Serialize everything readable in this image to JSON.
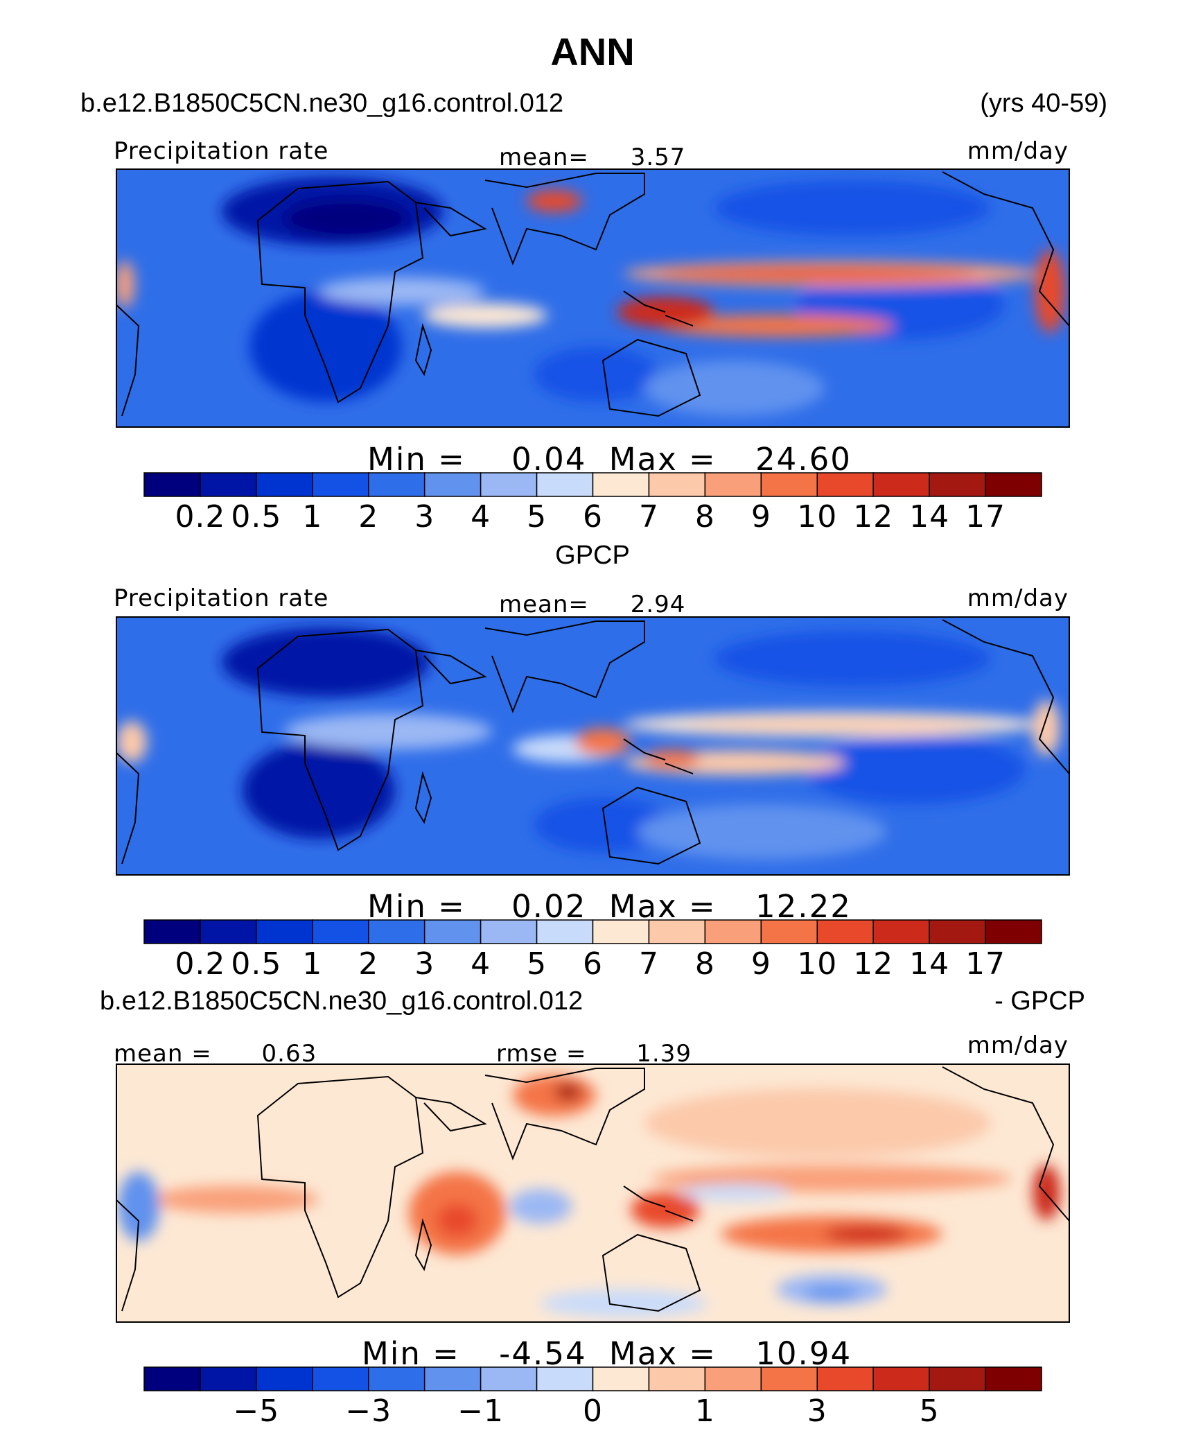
{
  "title": "ANN",
  "case_name": "b.e12.B1850C5CN.ne30_g16.control.012",
  "years": "(yrs 40-59)",
  "colors": {
    "abs_scale": [
      "#00007f",
      "#0014a6",
      "#0034d0",
      "#1452e6",
      "#2f6ee9",
      "#6192ee",
      "#9bb8f4",
      "#c9dbfa",
      "#fde8d4",
      "#fcc9aa",
      "#f9a07a",
      "#f47447",
      "#e8492a",
      "#cc2a1a",
      "#a31810",
      "#7f0000"
    ],
    "diff_scale": [
      "#00007f",
      "#0014a6",
      "#0034d0",
      "#1452e6",
      "#2f6ee9",
      "#6192ee",
      "#9bb8f4",
      "#c9dbfa",
      "#fde8d4",
      "#fcc9aa",
      "#f9a07a",
      "#f47447",
      "#e8492a",
      "#cc2a1a",
      "#a31810",
      "#7f0000"
    ]
  },
  "chart_data": [
    {
      "type": "heatmap",
      "panel": "model",
      "left_label": "Precipitation rate",
      "mean_label": "mean=",
      "mean_value": "3.57",
      "units": "mm/day",
      "min_label": "Min =",
      "min_value": "0.04",
      "max_label": "Max =",
      "max_value": "24.60",
      "min": 0.04,
      "max": 24.6,
      "colorbar_levels": [
        "0.2",
        "0.5",
        "1",
        "2",
        "3",
        "4",
        "5",
        "6",
        "7",
        "8",
        "9",
        "10",
        "12",
        "14",
        "17"
      ]
    },
    {
      "type": "heatmap",
      "panel": "obs",
      "subtitle": "GPCP",
      "left_label": "Precipitation rate",
      "mean_label": "mean=",
      "mean_value": "2.94",
      "units": "mm/day",
      "min_label": "Min =",
      "min_value": "0.02",
      "max_label": "Max =",
      "max_value": "12.22",
      "min": 0.02,
      "max": 12.22,
      "colorbar_levels": [
        "0.2",
        "0.5",
        "1",
        "2",
        "3",
        "4",
        "5",
        "6",
        "7",
        "8",
        "9",
        "10",
        "12",
        "14",
        "17"
      ]
    },
    {
      "type": "heatmap",
      "panel": "difference",
      "diff_left": "b.e12.B1850C5CN.ne30_g16.control.012",
      "diff_right": "- GPCP",
      "mean_label": "mean =",
      "mean_value": "0.63",
      "rmse_label": "rmse =",
      "rmse_value": "1.39",
      "units": "mm/day",
      "min_label": "Min =",
      "min_value": "-4.54",
      "max_label": "Max =",
      "max_value": "10.94",
      "min": -4.54,
      "max": 10.94,
      "colorbar_ticks": [
        "−5",
        "−3",
        "−1",
        "0",
        "1",
        "3",
        "5"
      ]
    }
  ]
}
